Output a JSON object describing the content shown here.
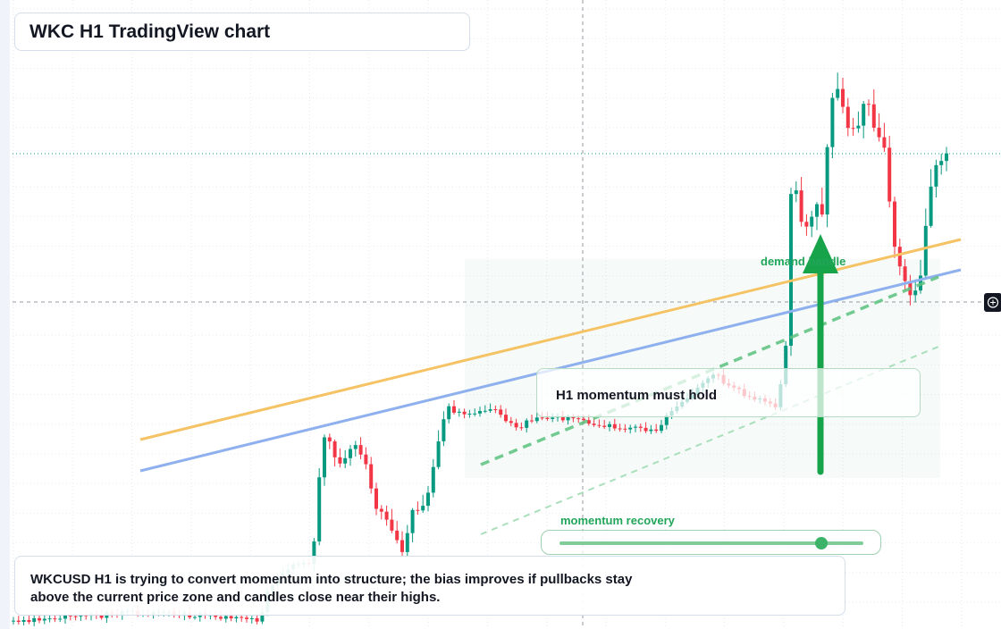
{
  "header": {
    "title": "WKC H1 TradingView chart"
  },
  "annotations": {
    "demand": "demand handle",
    "momentum": "H1 momentum must hold",
    "slider_label": "momentum recovery"
  },
  "footer": {
    "text": "WKCUSD H1 is trying to convert momentum into structure; the bias improves if pullbacks stay above the current price zone and candles close near their highs."
  }
}
